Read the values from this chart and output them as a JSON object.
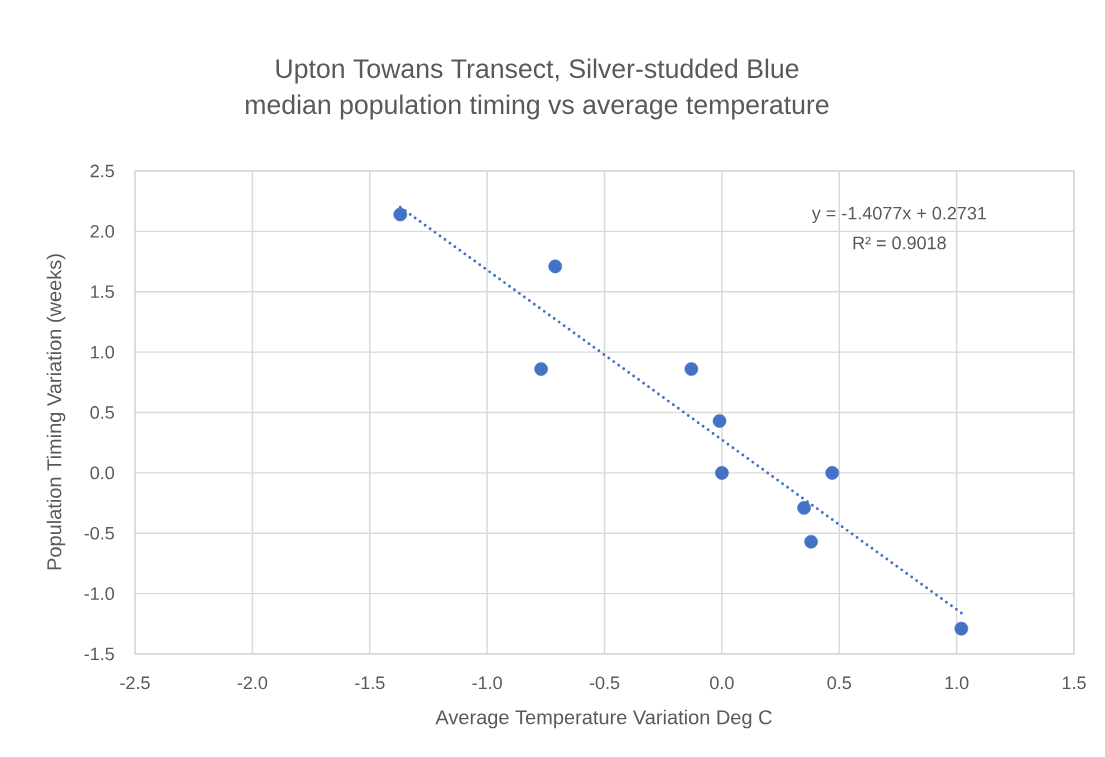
{
  "chart_data": {
    "type": "scatter",
    "title": "Upton Towans Transect, Silver-studded Blue",
    "subtitle": "median population timing vs average temperature",
    "xlabel": "Average Temperature Variation Deg C",
    "ylabel": "Population Timing Variation (weeks)",
    "xlim": [
      -2.5,
      1.5
    ],
    "ylim": [
      -1.5,
      2.5
    ],
    "xticks": [
      -2.5,
      {
        "value": -2,
        "label": "-2.0"
      },
      -1.5,
      {
        "value": -1,
        "label": "-1.0"
      },
      -0.5,
      {
        "value": 0,
        "label": "0.0"
      },
      0.5,
      {
        "value": 1,
        "label": "1.0"
      },
      1.5
    ],
    "yticks": [
      -1.5,
      {
        "value": -1,
        "label": "-1.0"
      },
      -0.5,
      {
        "value": 0,
        "label": "0.0"
      },
      0.5,
      {
        "value": 1,
        "label": "1.0"
      },
      1.5,
      {
        "value": 2,
        "label": "2.0"
      },
      2.5
    ],
    "grid": true,
    "series": [
      {
        "color": "#4472c4",
        "marker": "circle",
        "x": [
          -1.37,
          -0.71,
          -0.77,
          -0.13,
          -0.01,
          0.0,
          0.47,
          0.35,
          0.38,
          1.02
        ],
        "values": [
          2.14,
          1.71,
          0.86,
          0.86,
          0.43,
          0.0,
          0.0,
          -0.29,
          -0.57,
          -1.29
        ]
      },
      {
        "type": "line",
        "color": "#4472c4",
        "marker": "none",
        "line_style": "dotted",
        "x": [
          -1.37,
          1.02
        ],
        "values": [
          2.2,
          -1.16
        ]
      }
    ],
    "annotations": [
      "y = -1.4077x + 0.2731",
      "R² = 0.9018"
    ]
  }
}
